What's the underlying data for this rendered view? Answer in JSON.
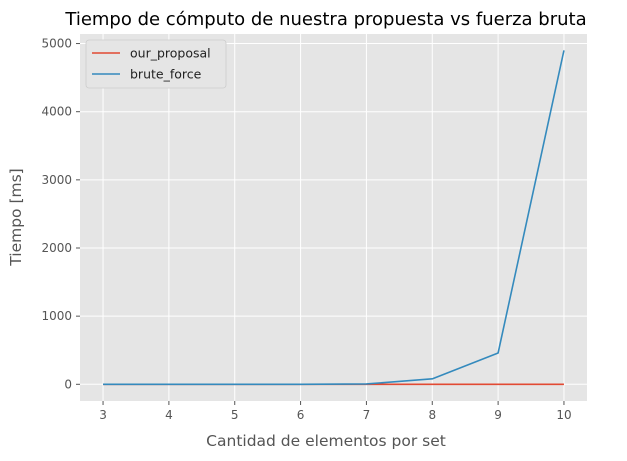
{
  "chart_data": {
    "type": "line",
    "title": "Tiempo de cómputo de nuestra propuesta vs fuerza bruta",
    "xlabel": "Cantidad de elementos por set",
    "ylabel": "Tiempo [ms]",
    "x": [
      3,
      4,
      5,
      6,
      7,
      8,
      9,
      10
    ],
    "xticks": [
      3,
      4,
      5,
      6,
      7,
      8,
      9,
      10
    ],
    "yticks": [
      0,
      1000,
      2000,
      3000,
      4000,
      5000
    ],
    "xlim": [
      2.65,
      10.35
    ],
    "ylim": [
      -245,
      5140
    ],
    "grid": true,
    "legend_position": "top-left",
    "series": [
      {
        "name": "our_proposal",
        "color": "#E24A33",
        "values": [
          0,
          0,
          0,
          0,
          0,
          0,
          0,
          0
        ]
      },
      {
        "name": "brute_force",
        "color": "#348ABD",
        "values": [
          0,
          0,
          0,
          0,
          5,
          80,
          460,
          4900
        ]
      }
    ]
  }
}
